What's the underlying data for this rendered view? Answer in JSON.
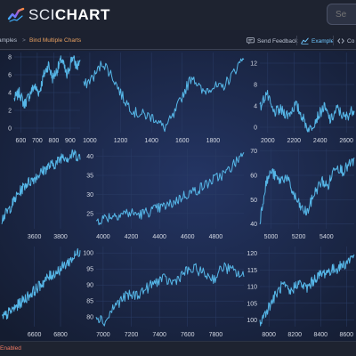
{
  "header": {
    "logo_text_light": "SCI",
    "logo_text_bold": "CHART",
    "search_placeholder": "Se"
  },
  "toolbar": {
    "breadcrumb_parent": "amples",
    "breadcrumb_separator": ">",
    "breadcrumb_current": "Bind Multiple Charts",
    "send_feedback_label": "Send Feedback",
    "example_label": "Example",
    "code_label": "Co"
  },
  "status_bar": {
    "text": "Enabled"
  },
  "colors": {
    "accent": "#6ec7ff",
    "breadcrumb_current": "#e8a060",
    "status_text": "#f07b64",
    "series_line": "#56b7e8",
    "chart_bg": "#1a2540"
  },
  "chart_data": [
    {
      "type": "line",
      "x_ticks": [
        "600",
        "700",
        "800",
        "900"
      ],
      "y_ticks": [
        "0",
        "2",
        "4",
        "6",
        "8"
      ],
      "xlim": [
        560,
        960
      ],
      "ylim": [
        -0.5,
        8.5
      ]
    },
    {
      "type": "line",
      "x_ticks": [
        "1000",
        "1200",
        "1400",
        "1600",
        "1800"
      ],
      "y_ticks": [],
      "xlim": [
        960,
        2000
      ],
      "ylim": [
        -0.5,
        8.5
      ]
    },
    {
      "type": "line",
      "x_ticks": [
        "2000",
        "2200",
        "2400",
        "2600"
      ],
      "y_ticks": [
        "0",
        "4",
        "8",
        "12"
      ],
      "xlim": [
        1940,
        2660
      ],
      "ylim": [
        -1,
        14
      ]
    },
    {
      "type": "line",
      "x_ticks": [
        "3600",
        "3800"
      ],
      "y_ticks": [],
      "xlim": [
        3350,
        3950
      ],
      "ylim": [
        21,
        42
      ]
    },
    {
      "type": "line",
      "x_ticks": [
        "4000",
        "4200",
        "4400",
        "4600",
        "4800"
      ],
      "y_ticks": [
        "25",
        "30",
        "35",
        "40"
      ],
      "xlim": [
        3950,
        5000
      ],
      "ylim": [
        21,
        42
      ]
    },
    {
      "type": "line",
      "x_ticks": [
        "5000",
        "5200",
        "5400"
      ],
      "y_ticks": [
        "40",
        "50",
        "60",
        "70"
      ],
      "xlim": [
        4920,
        5600
      ],
      "ylim": [
        38,
        71
      ]
    },
    {
      "type": "line",
      "x_ticks": [
        "6600",
        "6800"
      ],
      "y_ticks": [],
      "xlim": [
        6350,
        6950
      ],
      "ylim": [
        77,
        102
      ]
    },
    {
      "type": "line",
      "x_ticks": [
        "7000",
        "7200",
        "7400",
        "7600",
        "7800"
      ],
      "y_ticks": [
        "80",
        "85",
        "90",
        "95",
        "100"
      ],
      "xlim": [
        6950,
        8000
      ],
      "ylim": [
        77,
        102
      ]
    },
    {
      "type": "line",
      "x_ticks": [
        "8000",
        "8200",
        "8400",
        "8600"
      ],
      "y_ticks": [
        "100",
        "105",
        "110",
        "115",
        "120"
      ],
      "xlim": [
        7930,
        8660
      ],
      "ylim": [
        98,
        122
      ]
    }
  ]
}
